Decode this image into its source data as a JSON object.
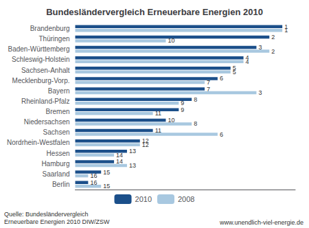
{
  "chart_data": {
    "type": "bar",
    "orientation": "horizontal",
    "title": "Bundesländervergleich Erneuerbare Energien 2010",
    "annotations": [
      "Quelle: Bundesländervergleich\nErneuerbare Energien 2010 DIW/ZSW",
      "www.unendlich-viel-energie.de"
    ],
    "categories": [
      "Brandenburg",
      "Thüringen",
      "Baden-Württemberg",
      "Schleswig-Holstein",
      "Sachsen-Anhalt",
      "Mecklenburg-Vorp.",
      "Bayern",
      "Rheinland-Pfalz",
      "Bremen",
      "Niedersachsen",
      "Sachsen",
      "Nordrhein-Westfalen",
      "Hessen",
      "Hamburg",
      "Saarland",
      "Berlin"
    ],
    "series": [
      {
        "name": "2010",
        "color": "#1b4f8a",
        "values": [
          1,
          2,
          3,
          4,
          5,
          6,
          7,
          8,
          9,
          10,
          11,
          12,
          13,
          14,
          15,
          16
        ]
      },
      {
        "name": "2008",
        "color": "#a8c8e0",
        "values": [
          1,
          10,
          2,
          4,
          5,
          7,
          3,
          9,
          11,
          8,
          6,
          12,
          14,
          13,
          16,
          15
        ]
      }
    ],
    "xlim": [
      0,
      17
    ],
    "data_labels": true,
    "tick_labels": "y",
    "grid": false,
    "legend": "bottom"
  }
}
